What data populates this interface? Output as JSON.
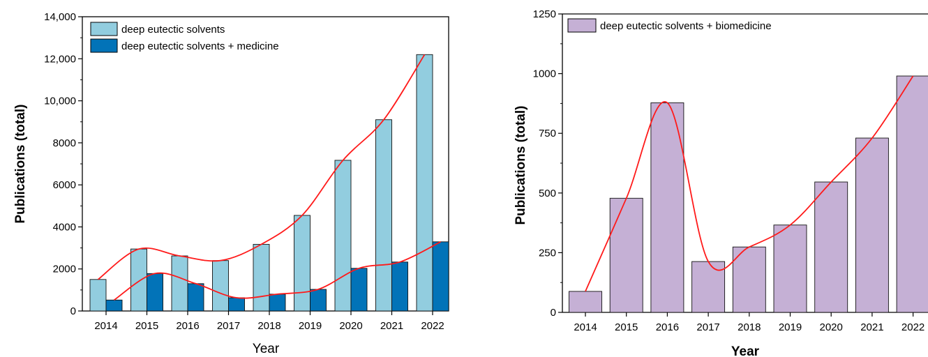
{
  "chart_data": [
    {
      "type": "bar",
      "categories": [
        "2014",
        "2015",
        "2016",
        "2017",
        "2018",
        "2019",
        "2020",
        "2021",
        "2022"
      ],
      "series": [
        {
          "name": "deep eutectic solvents",
          "values": [
            1500,
            2950,
            2620,
            2400,
            3170,
            4550,
            7170,
            9100,
            12200
          ],
          "color": "#92cddf"
        },
        {
          "name": "deep eutectic solvents + medicine",
          "values": [
            520,
            1780,
            1300,
            630,
            800,
            1030,
            2030,
            2330,
            3290
          ],
          "color": "#0273b8"
        }
      ],
      "trend_color": "#ff1a1a",
      "xlabel": "Year",
      "ylabel": "Publications (total)",
      "ylim": [
        0,
        14000
      ],
      "yticks": [
        "0",
        "2000",
        "4000",
        "6000",
        "8000",
        "10,000",
        "12,000",
        "14,000"
      ],
      "grid": false,
      "legend_position": "top-left"
    },
    {
      "type": "bar",
      "categories": [
        "2014",
        "2015",
        "2016",
        "2017",
        "2018",
        "2019",
        "2020",
        "2021",
        "2022"
      ],
      "series": [
        {
          "name": "deep eutectic solvents + biomedicine",
          "values": [
            88,
            478,
            878,
            213,
            274,
            366,
            546,
            730,
            990
          ],
          "color": "#c5b0d5"
        }
      ],
      "trend_color": "#ff1a1a",
      "xlabel": "Year",
      "ylabel": "Publications (total)",
      "ylim": [
        0,
        1250
      ],
      "yticks": [
        "0",
        "250",
        "500",
        "750",
        "1000",
        "1250"
      ],
      "grid": false,
      "legend_position": "top-left"
    }
  ]
}
